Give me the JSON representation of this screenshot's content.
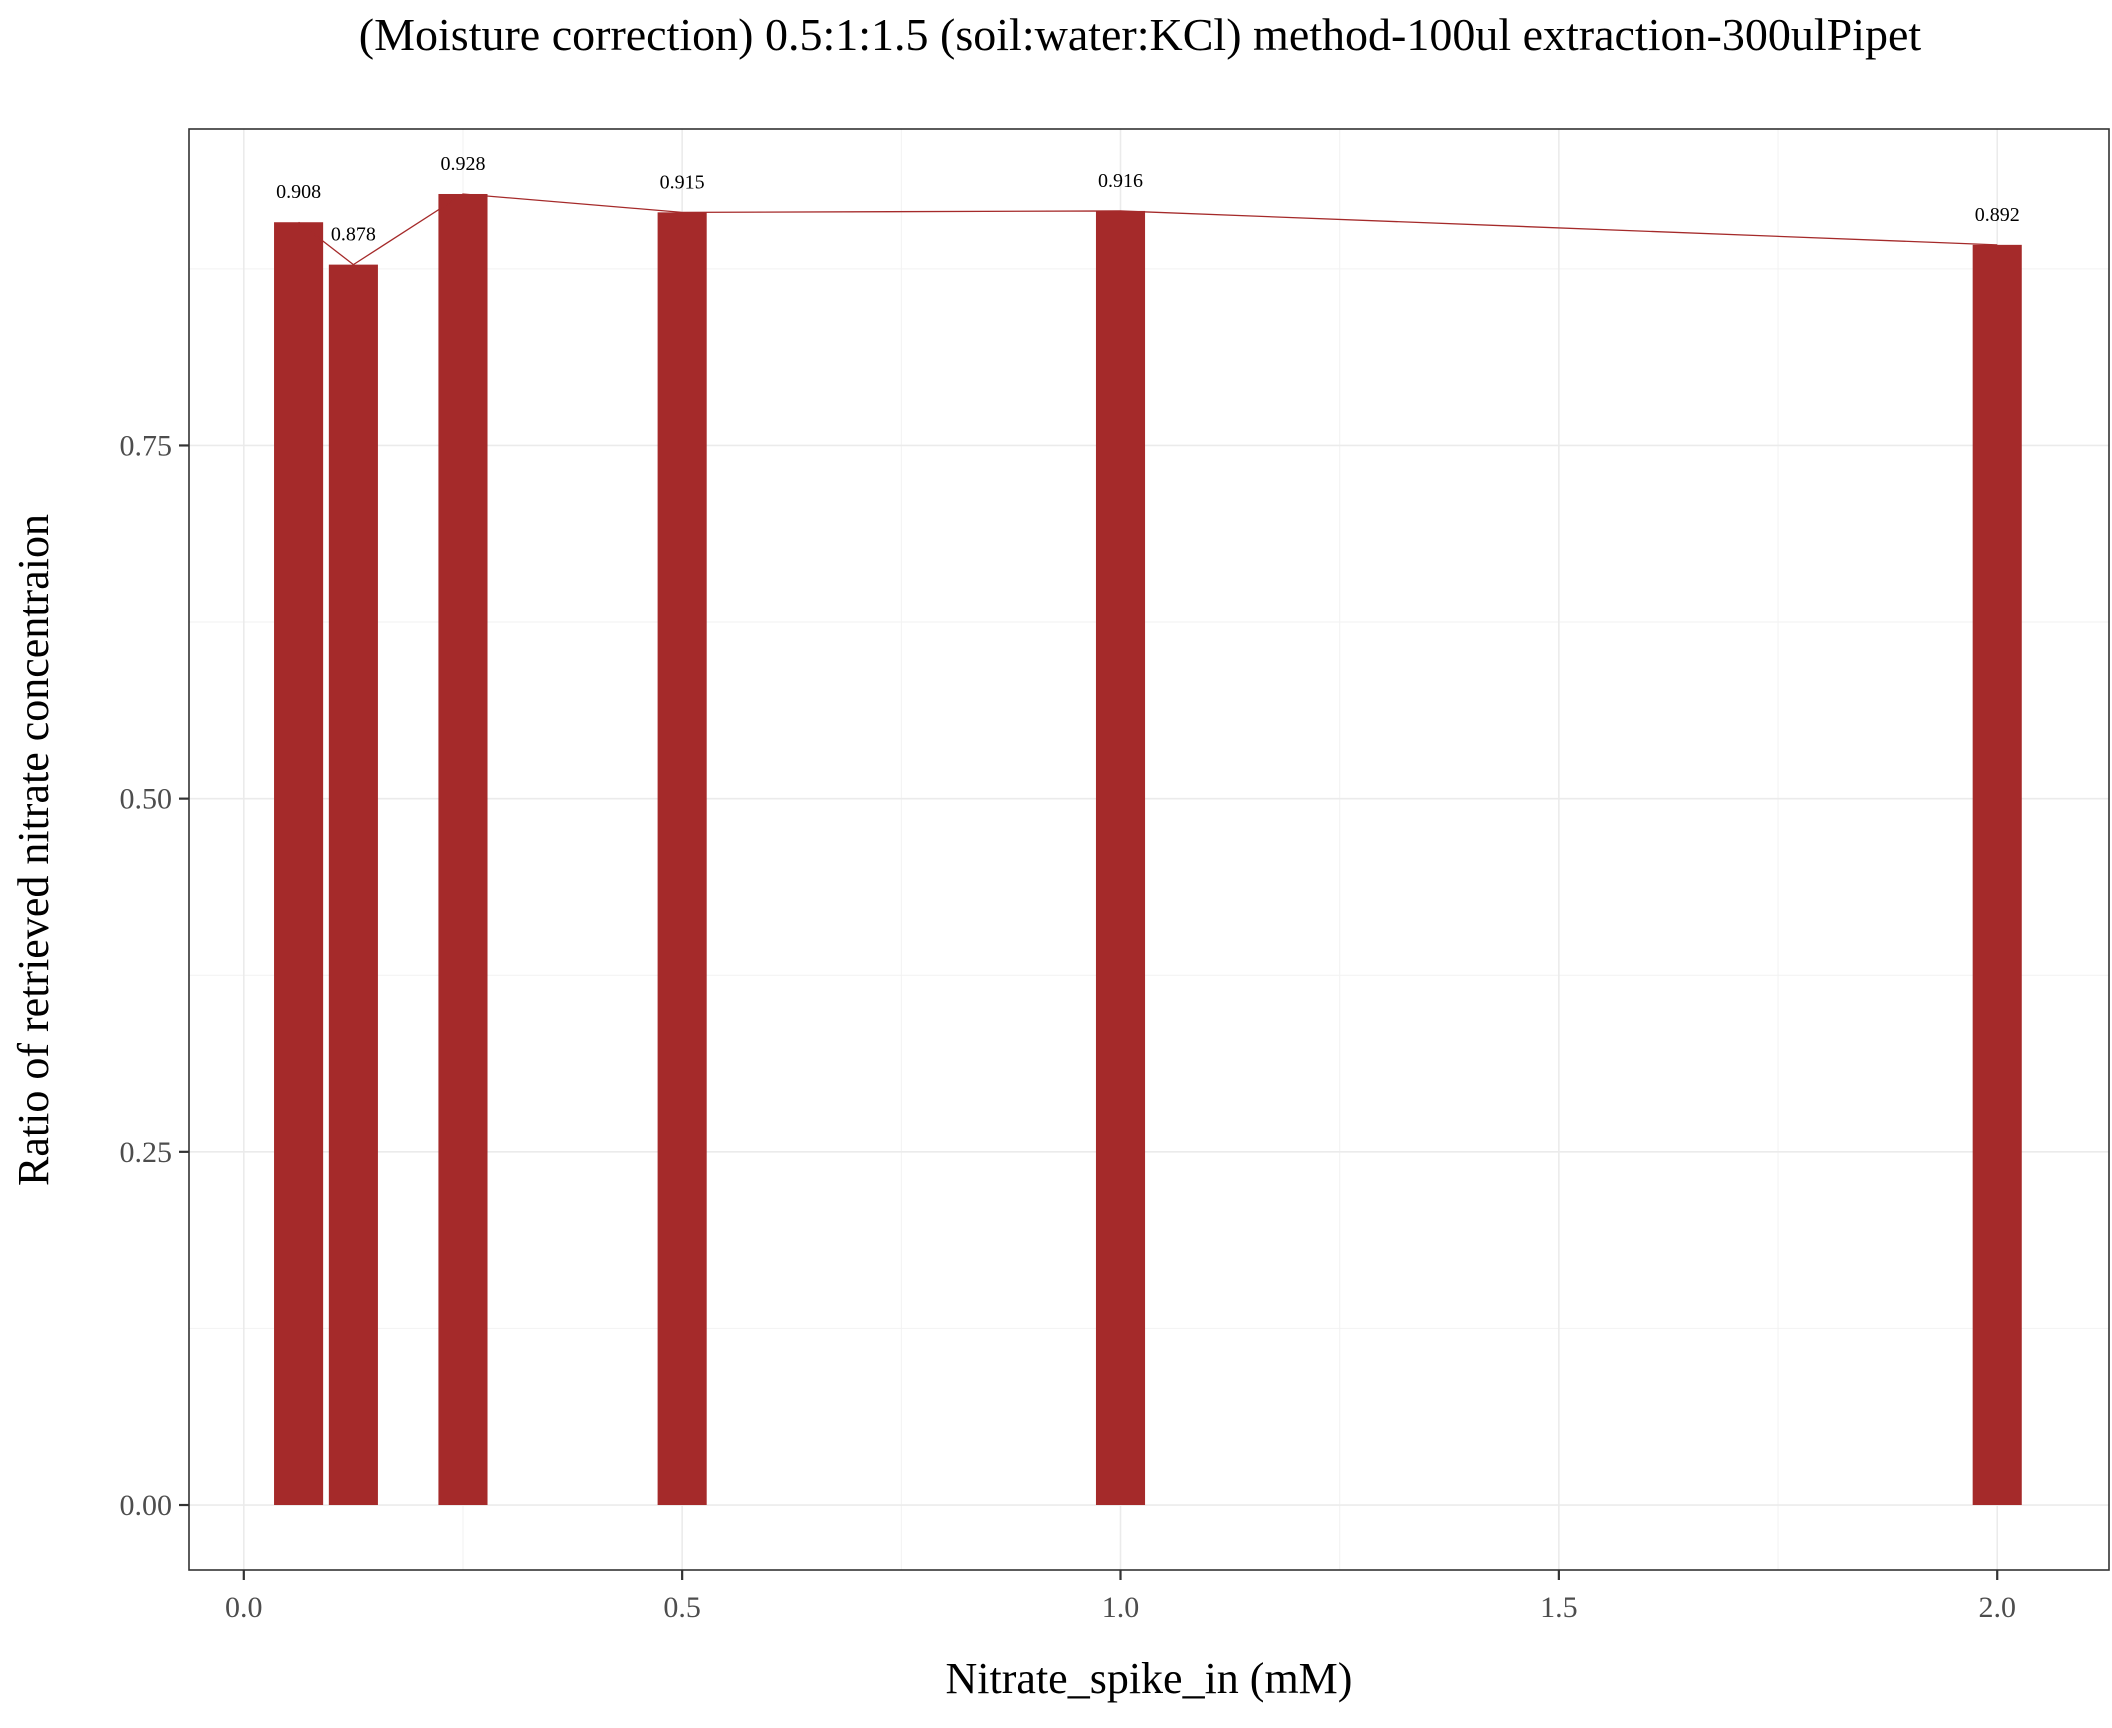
{
  "chart_data": {
    "type": "bar",
    "title": "(Moisture correction) 0.5:1:1.5 (soil:water:KCl) method-100ul extraction-300ulPipet",
    "xlabel": "Nitrate_spike_in (mM)",
    "ylabel": "Ratio of retrieved nitrate concentraion",
    "x": [
      0.0625,
      0.125,
      0.25,
      0.5,
      1.0,
      2.0
    ],
    "values": [
      0.908,
      0.878,
      0.928,
      0.915,
      0.916,
      0.892
    ],
    "data_labels": [
      "0.908",
      "0.878",
      "0.928",
      "0.915",
      "0.916",
      "0.892"
    ],
    "bar_width": 0.056,
    "xlim": [
      -0.0625,
      2.1275
    ],
    "ylim": [
      -0.046,
      0.974
    ],
    "x_ticks": [
      0.0,
      0.5,
      1.0,
      1.5,
      2.0
    ],
    "x_tick_labels": [
      "0.0",
      "0.5",
      "1.0",
      "1.5",
      "2.0"
    ],
    "y_ticks": [
      0.0,
      0.25,
      0.5,
      0.75
    ],
    "y_tick_labels": [
      "0.00",
      "0.25",
      "0.50",
      "0.75"
    ],
    "x_minor_ticks": [
      0.25,
      0.75,
      1.25,
      1.75
    ],
    "y_minor_ticks": [
      0.125,
      0.375,
      0.625,
      0.875
    ],
    "has_connecting_line": true,
    "grid": true,
    "legend": "none",
    "bar_color": "#a52a2a",
    "line_color": "#a52a2a"
  }
}
